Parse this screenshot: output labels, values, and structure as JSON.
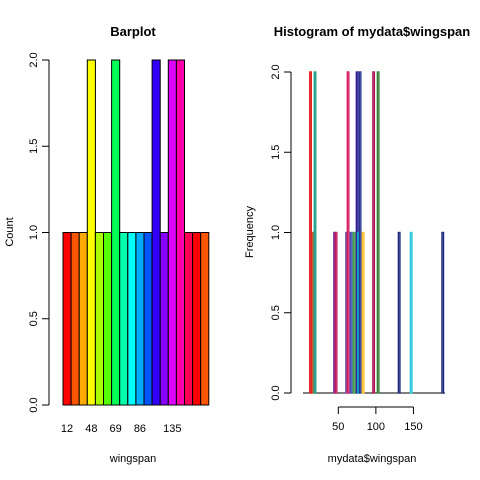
{
  "chart_data": [
    {
      "type": "bar",
      "title": "Barplot",
      "xlabel": "wingspan",
      "ylabel": "Count",
      "ylim": [
        0,
        2
      ],
      "yticks": [
        "0.0",
        "0.5",
        "1.0",
        "1.5",
        "2.0"
      ],
      "tick_labels": [
        "12",
        "48",
        "69",
        "86",
        "135"
      ],
      "tick_bar_index": [
        0,
        3,
        6,
        9,
        13
      ],
      "values": [
        1,
        1,
        1,
        2,
        1,
        1,
        2,
        1,
        1,
        1,
        1,
        2,
        1,
        2,
        2,
        1,
        1,
        1
      ],
      "colors": [
        "#FF0000",
        "#FF5500",
        "#FFAA00",
        "#FFFF00",
        "#AAFF00",
        "#55FF00",
        "#00FF55",
        "#00FFAA",
        "#00FFFF",
        "#00AAFF",
        "#0055FF",
        "#3300FF",
        "#8800FF",
        "#DD00FF",
        "#FF00AA",
        "#FF0055",
        "#FF0000",
        "#FF5500"
      ]
    },
    {
      "type": "bar",
      "title": "Histogram of mydata$wingspan",
      "xlabel": "mydata$wingspan",
      "ylabel": "Frequency",
      "ylim": [
        0,
        2
      ],
      "xlim": [
        3,
        192
      ],
      "yticks": [
        "0.0",
        "0.5",
        "1.0",
        "1.5",
        "2.0"
      ],
      "xticks": [
        50,
        100,
        150
      ],
      "bin_width": 2,
      "bins": [
        {
          "x": 12,
          "count": 2,
          "color": "#E31A1C"
        },
        {
          "x": 16,
          "count": 1,
          "color": "#B15928"
        },
        {
          "x": 18,
          "count": 2,
          "color": "#1F9E89"
        },
        {
          "x": 44,
          "count": 1,
          "color": "#7B3294"
        },
        {
          "x": 46,
          "count": 1,
          "color": "#C2185B"
        },
        {
          "x": 60,
          "count": 1,
          "color": "#6A51A3"
        },
        {
          "x": 62,
          "count": 2,
          "color": "#D81B60"
        },
        {
          "x": 66,
          "count": 1,
          "color": "#3F51B5"
        },
        {
          "x": 70,
          "count": 1,
          "color": "#43A047"
        },
        {
          "x": 74,
          "count": 2,
          "color": "#311B92"
        },
        {
          "x": 76,
          "count": 1,
          "color": "#00BCD4"
        },
        {
          "x": 78,
          "count": 2,
          "color": "#283593"
        },
        {
          "x": 82,
          "count": 1,
          "color": "#FBC02D"
        },
        {
          "x": 96,
          "count": 2,
          "color": "#AD1457"
        },
        {
          "x": 102,
          "count": 2,
          "color": "#2E7D32"
        },
        {
          "x": 130,
          "count": 1,
          "color": "#1A237E"
        },
        {
          "x": 146,
          "count": 1,
          "color": "#26C6DA"
        },
        {
          "x": 188,
          "count": 1,
          "color": "#1A237E"
        }
      ]
    }
  ]
}
